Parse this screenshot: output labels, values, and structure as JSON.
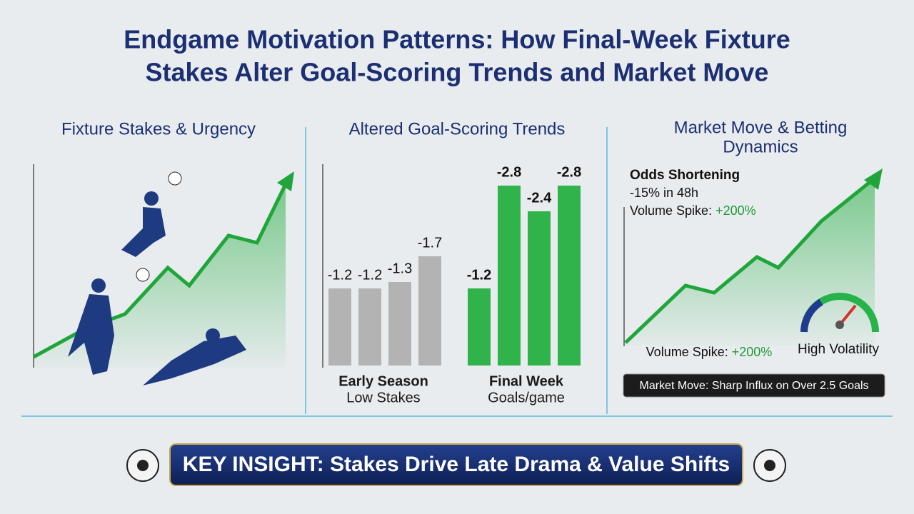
{
  "title": [
    "Endgame Motivation Patterns: How Final-Week Fixture",
    "Stakes Alter Goal-Scoring Trends and Market Move"
  ],
  "panels": [
    {
      "heading": "Fixture Stakes & Urgency"
    },
    {
      "heading": "Altered Goal-Scoring Trends",
      "groups": [
        {
          "label": "Early Season",
          "sublabel": "Low Stakes",
          "color": "#b3b3b3",
          "values": [
            -1.2,
            -1.2,
            -1.3,
            -1.7
          ]
        },
        {
          "label": "Final Week",
          "sublabel": "Goals/game",
          "color": "#2fb34a",
          "values": [
            -1.2,
            -2.8,
            -2.4,
            -2.8
          ]
        }
      ]
    },
    {
      "heading": [
        "Market Move & Betting",
        "Dynamics"
      ],
      "odds_title": "Odds Shortening",
      "odds_change": "-15% in 48h",
      "volume_label": "Volume Spike:",
      "volume_value": "+200%",
      "gauge_label": "High Volatility",
      "banner": "Market Move: Sharp Influx on Over 2.5 Goals"
    }
  ],
  "key_insight": "KEY INSIGHT: Stakes Drive Late Drama & Value Shifts"
}
